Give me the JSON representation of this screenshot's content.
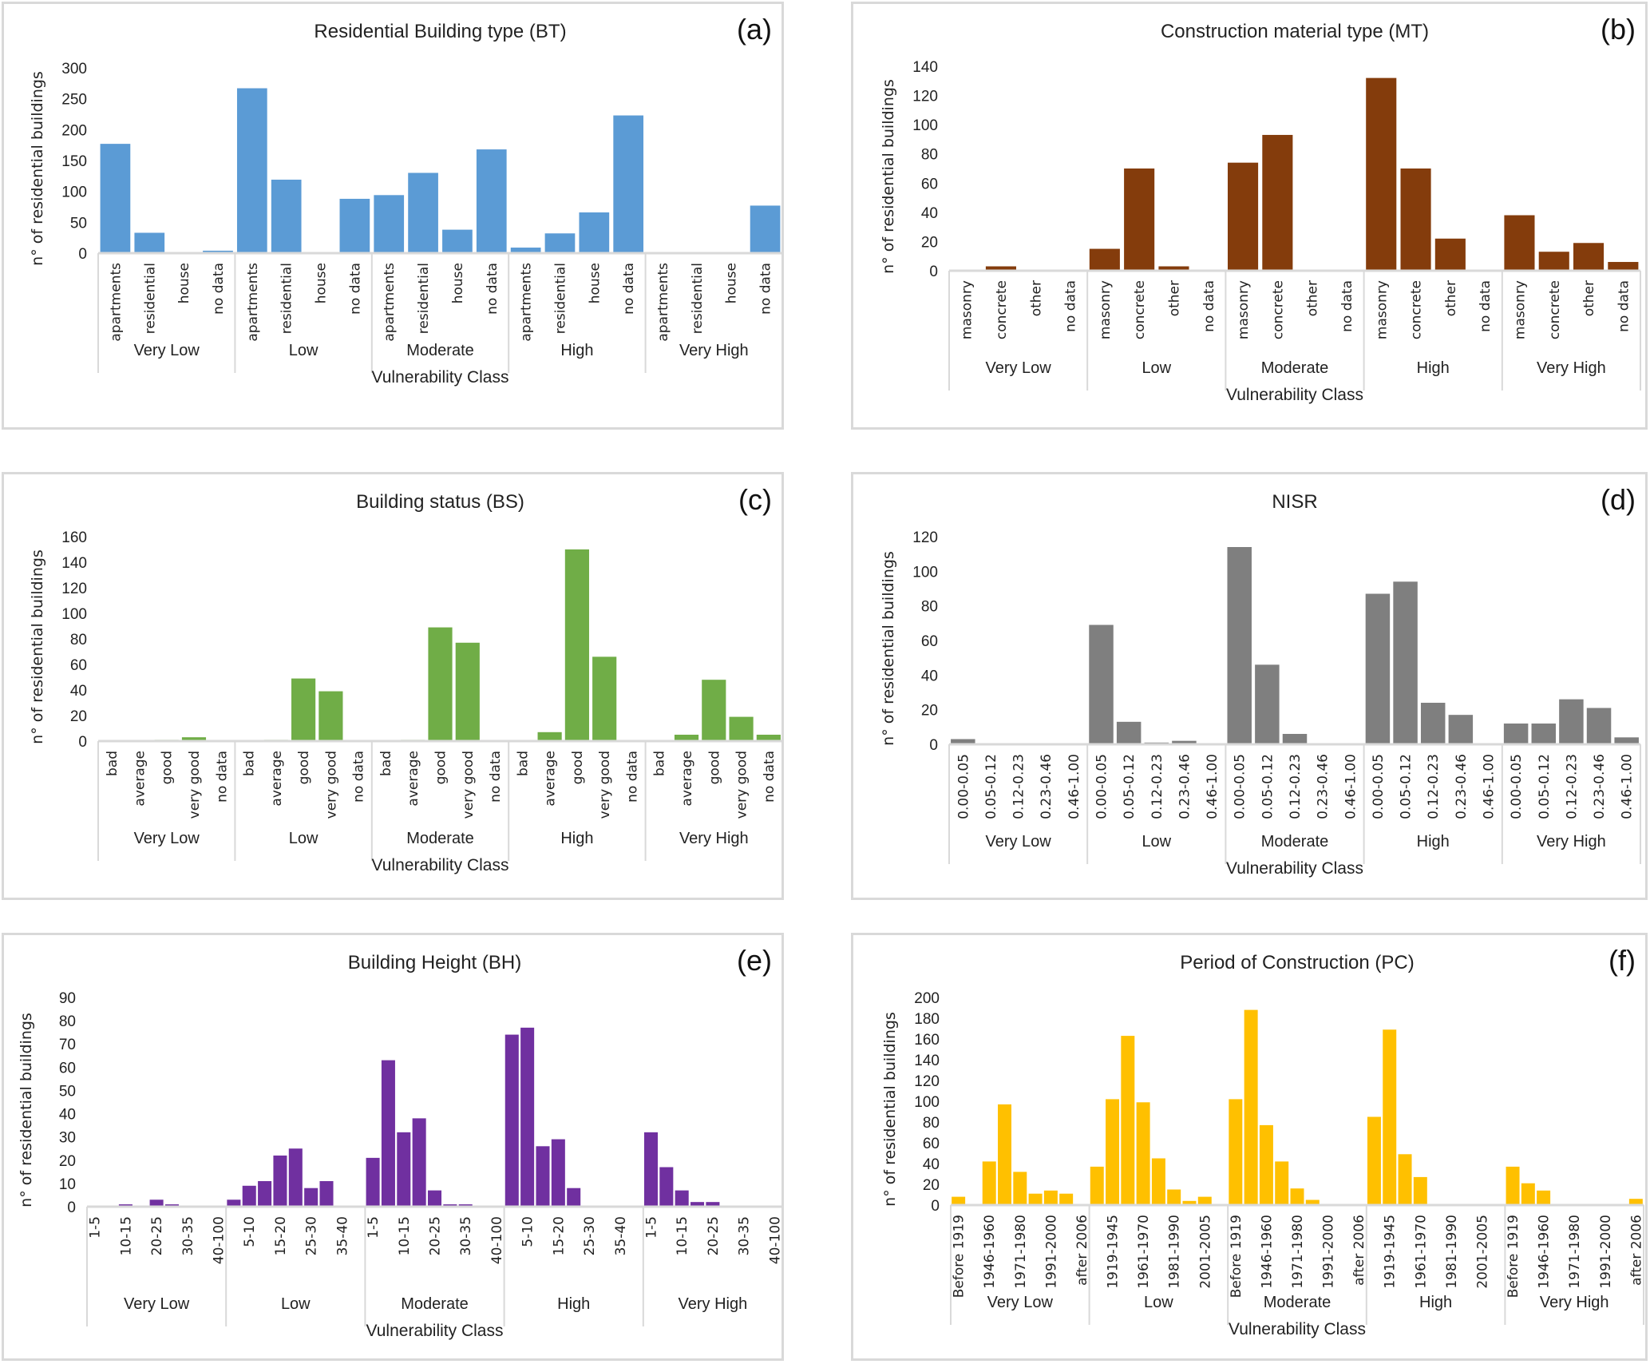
{
  "figure": {
    "group_labels": [
      "Very Low",
      "Low",
      "Moderate",
      "High",
      "Very High"
    ],
    "xlabel": "Vulnerability Class",
    "ylabel": "n° of residential buildings"
  },
  "chart_data": [
    {
      "id": "a",
      "panel_label": "(a)",
      "type": "bar",
      "title": "Residential  Building type (BT)",
      "xlabel": "Vulnerability Class",
      "ylabel": "n° of residential buildings",
      "color": "#5b9bd5",
      "ylim": [
        0,
        300
      ],
      "yticks": [
        0,
        50,
        100,
        150,
        200,
        250,
        300
      ],
      "groups": [
        "Very Low",
        "Low",
        "Moderate",
        "High",
        "Very High"
      ],
      "categories": [
        "apartments",
        "residential",
        "house",
        "no data"
      ],
      "label_every": 1,
      "values": [
        [
          177,
          33,
          0,
          4
        ],
        [
          267,
          119,
          0,
          88
        ],
        [
          94,
          130,
          38,
          168
        ],
        [
          9,
          32,
          66,
          223
        ],
        [
          0,
          0,
          0,
          77
        ]
      ],
      "grid": false,
      "legend": "none"
    },
    {
      "id": "b",
      "panel_label": "(b)",
      "type": "bar",
      "title": "Construction material type (MT)",
      "xlabel": "Vulnerability Class",
      "ylabel": "n° of residential buildings",
      "color": "#843c0c",
      "ylim": [
        0,
        140
      ],
      "yticks": [
        0,
        20,
        40,
        60,
        80,
        100,
        120,
        140
      ],
      "groups": [
        "Very Low",
        "Low",
        "Moderate",
        "High",
        "Very High"
      ],
      "categories": [
        "masonry",
        "concrete",
        "other",
        "no data"
      ],
      "label_every": 1,
      "values": [
        [
          0,
          3,
          0,
          0
        ],
        [
          15,
          70,
          3,
          0
        ],
        [
          74,
          93,
          0,
          0
        ],
        [
          132,
          70,
          22,
          0
        ],
        [
          38,
          13,
          19,
          6
        ]
      ],
      "grid": false,
      "legend": "none"
    },
    {
      "id": "c",
      "panel_label": "(c)",
      "type": "bar",
      "title": "Building status (BS)",
      "xlabel": "Vulnerability Class",
      "ylabel": "n° of residential buildings",
      "color": "#70ad47",
      "ylim": [
        0,
        160
      ],
      "yticks": [
        0,
        20,
        40,
        60,
        80,
        100,
        120,
        140,
        160
      ],
      "groups": [
        "Very Low",
        "Low",
        "Moderate",
        "High",
        "Very High"
      ],
      "categories": [
        "bad",
        "average",
        "good",
        "very good",
        "no data"
      ],
      "label_every": 1,
      "values": [
        [
          0,
          0,
          1,
          3,
          0
        ],
        [
          0,
          1,
          49,
          39,
          0
        ],
        [
          0,
          1,
          89,
          77,
          0
        ],
        [
          0,
          7,
          150,
          66,
          0
        ],
        [
          0,
          5,
          48,
          19,
          5
        ]
      ],
      "grid": false,
      "legend": "none"
    },
    {
      "id": "d",
      "panel_label": "(d)",
      "type": "bar",
      "title": "NISR",
      "xlabel": "Vulnerability Class",
      "ylabel": "n° of residential buildings",
      "color": "#7f7f7f",
      "ylim": [
        0,
        120
      ],
      "yticks": [
        0,
        20,
        40,
        60,
        80,
        100,
        120
      ],
      "groups": [
        "Very Low",
        "Low",
        "Moderate",
        "High",
        "Very High"
      ],
      "categories": [
        "0.00-0.05",
        "0.05-0.12",
        "0.12-0.23",
        "0.23-0.46",
        "0.46-1.00"
      ],
      "label_every": 1,
      "values": [
        [
          3,
          0.5,
          0,
          0,
          0
        ],
        [
          69,
          13,
          1,
          2,
          0
        ],
        [
          114,
          46,
          6,
          0.5,
          0
        ],
        [
          87,
          94,
          24,
          17,
          0.5
        ],
        [
          12,
          12,
          26,
          21,
          4
        ]
      ],
      "grid": false,
      "legend": "none"
    },
    {
      "id": "e",
      "panel_label": "(e)",
      "type": "bar",
      "title": "Building Height (BH)",
      "xlabel": "Vulnerability Class",
      "ylabel": "n° of residential buildings",
      "color": "#7030a0",
      "ylim": [
        0,
        90
      ],
      "yticks": [
        0,
        10,
        20,
        30,
        40,
        50,
        60,
        70,
        80,
        90
      ],
      "groups": [
        "Very Low",
        "Low",
        "Moderate",
        "High",
        "Very High"
      ],
      "categories": [
        "1-5",
        "5-10",
        "10-15",
        "15-20",
        "20-25",
        "25-30",
        "30-35",
        "35-40",
        "40-100"
      ],
      "label_every": 2,
      "visible_category_labels": [
        [
          "1-5",
          "10-15",
          "20-25",
          "30-35",
          "40-100"
        ],
        [
          "5-10",
          "15-20",
          "25-30",
          "35-40"
        ],
        [
          "1-5",
          "10-15",
          "20-25",
          "30-35",
          "40-100"
        ],
        [
          "5-10",
          "15-20",
          "25-30",
          "35-40"
        ],
        [
          "1-5",
          "10-15",
          "20-25",
          "30-35",
          "40-100"
        ]
      ],
      "values": [
        [
          0,
          0,
          1,
          0,
          3,
          1,
          0,
          0,
          0
        ],
        [
          3,
          9,
          11,
          22,
          25,
          8,
          11,
          0,
          0
        ],
        [
          21,
          63,
          32,
          38,
          7,
          1,
          1,
          0,
          0
        ],
        [
          74,
          77,
          26,
          29,
          8,
          0,
          0,
          0,
          0
        ],
        [
          32,
          17,
          7,
          2,
          2,
          0,
          0,
          0,
          0
        ]
      ],
      "grid": false,
      "legend": "none"
    },
    {
      "id": "f",
      "panel_label": "(f)",
      "type": "bar",
      "title": "Period of Construction (PC)",
      "xlabel": "Vulnerability Class",
      "ylabel": "n° of residential buildings",
      "color": "#ffc000",
      "ylim": [
        0,
        200
      ],
      "yticks": [
        0,
        20,
        40,
        60,
        80,
        100,
        120,
        140,
        160,
        180,
        200
      ],
      "groups": [
        "Very Low",
        "Low",
        "Moderate",
        "High",
        "Very High"
      ],
      "categories": [
        "Before 1919",
        "1919-1945",
        "1946-1960",
        "1961-1970",
        "1971-1980",
        "1981-1990",
        "1991-2000",
        "2001-2005",
        "after 2006"
      ],
      "label_every": 2,
      "visible_category_labels": [
        [
          "Before 1919",
          "1946-1960",
          "1971-1980",
          "1991-2000",
          "after 2006"
        ],
        [
          "1919-1945",
          "1961-1970",
          "1981-1990",
          "2001-2005"
        ],
        [
          "Before 1919",
          "1946-1960",
          "1971-1980",
          "1991-2000",
          "after 2006"
        ],
        [
          "1919-1945",
          "1961-1970",
          "1981-1990",
          "2001-2005"
        ],
        [
          "Before 1919",
          "1946-1960",
          "1971-1980",
          "1991-2000",
          "after 2006"
        ]
      ],
      "values": [
        [
          8,
          0,
          42,
          97,
          32,
          11,
          14,
          11,
          0.5
        ],
        [
          37,
          102,
          163,
          99,
          45,
          15,
          4,
          8,
          0
        ],
        [
          102,
          188,
          77,
          42,
          16,
          5,
          0,
          0,
          0
        ],
        [
          85,
          169,
          49,
          27,
          0.5,
          0,
          0,
          0,
          0
        ],
        [
          37,
          21,
          14,
          0.5,
          0.5,
          0,
          0,
          0,
          6
        ]
      ],
      "grid": false,
      "legend": "none"
    }
  ]
}
